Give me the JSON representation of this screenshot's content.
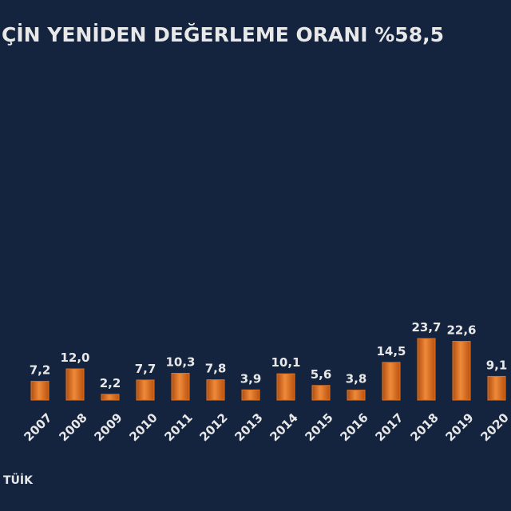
{
  "chart_data": {
    "type": "bar",
    "title": "ÇİN YENİDEN DEĞERLEME ORANI %58,5",
    "categories": [
      "2007",
      "2008",
      "2009",
      "2010",
      "2011",
      "2012",
      "2013",
      "2014",
      "2015",
      "2016",
      "2017",
      "2018",
      "2019",
      "2020"
    ],
    "values": [
      7.2,
      12.0,
      2.2,
      7.7,
      10.3,
      7.8,
      3.9,
      10.1,
      5.6,
      3.8,
      14.5,
      23.7,
      22.6,
      9.1
    ],
    "value_labels": [
      "7,2",
      "12,0",
      "2,2",
      "7,7",
      "10,3",
      "7,8",
      "3,9",
      "10,1",
      "5,6",
      "3,8",
      "14,5",
      "23,7",
      "22,6",
      "9,1"
    ],
    "color": "#e07322",
    "source": "TÜİK"
  }
}
